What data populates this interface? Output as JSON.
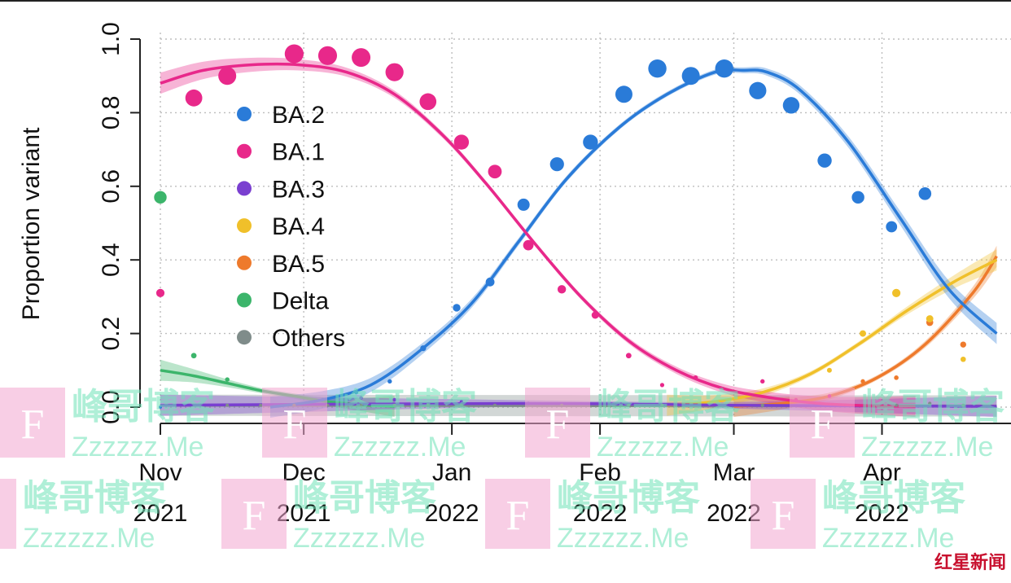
{
  "chart_data": {
    "type": "line",
    "ylabel": "Proportion variant",
    "ylim": [
      0,
      1
    ],
    "y_ticks": [
      "0.0",
      "0.2",
      "0.4",
      "0.6",
      "0.8",
      "1.0"
    ],
    "x_range": [
      "2021-11-01",
      "2022-04-25"
    ],
    "x_ticks": [
      {
        "date": "2021-11-01",
        "month": "Nov",
        "year": "2021"
      },
      {
        "date": "2021-12-01",
        "month": "Dec",
        "year": "2021"
      },
      {
        "date": "2022-01-01",
        "month": "Jan",
        "year": "2022"
      },
      {
        "date": "2022-02-01",
        "month": "Feb",
        "year": "2022"
      },
      {
        "date": "2022-03-01",
        "month": "Mar",
        "year": "2022"
      },
      {
        "date": "2022-04-01",
        "month": "Apr",
        "year": "2022"
      }
    ],
    "grid": true,
    "legend_position": "top-left",
    "series": [
      {
        "name": "BA.2",
        "color": "#2a7bd8",
        "fit": [
          [
            "2021-11-24",
            0.0
          ],
          [
            "2021-12-05",
            0.02
          ],
          [
            "2021-12-15",
            0.06
          ],
          [
            "2021-12-25",
            0.15
          ],
          [
            "2022-01-05",
            0.28
          ],
          [
            "2022-01-15",
            0.45
          ],
          [
            "2022-01-25",
            0.62
          ],
          [
            "2022-02-05",
            0.76
          ],
          [
            "2022-02-15",
            0.85
          ],
          [
            "2022-02-25",
            0.91
          ],
          [
            "2022-03-03",
            0.915
          ],
          [
            "2022-03-08",
            0.91
          ],
          [
            "2022-03-15",
            0.86
          ],
          [
            "2022-03-25",
            0.72
          ],
          [
            "2022-04-05",
            0.51
          ],
          [
            "2022-04-15",
            0.32
          ],
          [
            "2022-04-25",
            0.2
          ]
        ],
        "points": [
          [
            "2021-11-01",
            0.0
          ],
          [
            "2021-12-05",
            0.02
          ],
          [
            "2021-12-12",
            0.04
          ],
          [
            "2021-12-19",
            0.07
          ],
          [
            "2021-12-26",
            0.16
          ],
          [
            "2022-01-02",
            0.27
          ],
          [
            "2022-01-09",
            0.34
          ],
          [
            "2022-01-16",
            0.55
          ],
          [
            "2022-01-23",
            0.66
          ],
          [
            "2022-01-30",
            0.72
          ],
          [
            "2022-02-06",
            0.85
          ],
          [
            "2022-02-13",
            0.92
          ],
          [
            "2022-02-20",
            0.9
          ],
          [
            "2022-02-27",
            0.92
          ],
          [
            "2022-03-06",
            0.86
          ],
          [
            "2022-03-13",
            0.82
          ],
          [
            "2022-03-20",
            0.67
          ],
          [
            "2022-03-27",
            0.57
          ],
          [
            "2022-04-03",
            0.49
          ],
          [
            "2022-04-10",
            0.58
          ]
        ]
      },
      {
        "name": "BA.1",
        "color": "#e8288a",
        "fit": [
          [
            "2021-11-01",
            0.88
          ],
          [
            "2021-11-10",
            0.915
          ],
          [
            "2021-11-20",
            0.93
          ],
          [
            "2021-11-30",
            0.93
          ],
          [
            "2021-12-10",
            0.91
          ],
          [
            "2021-12-20",
            0.85
          ],
          [
            "2021-12-30",
            0.74
          ],
          [
            "2022-01-08",
            0.61
          ],
          [
            "2022-01-18",
            0.45
          ],
          [
            "2022-01-28",
            0.3
          ],
          [
            "2022-02-07",
            0.18
          ],
          [
            "2022-02-17",
            0.1
          ],
          [
            "2022-02-27",
            0.05
          ],
          [
            "2022-03-09",
            0.025
          ],
          [
            "2022-03-19",
            0.01
          ],
          [
            "2022-03-29",
            0.004
          ],
          [
            "2022-04-08",
            0.002
          ]
        ],
        "points": [
          [
            "2021-11-01",
            0.31
          ],
          [
            "2021-11-08",
            0.84
          ],
          [
            "2021-11-15",
            0.9
          ],
          [
            "2021-11-29",
            0.96
          ],
          [
            "2021-12-06",
            0.955
          ],
          [
            "2021-12-13",
            0.95
          ],
          [
            "2021-12-20",
            0.91
          ],
          [
            "2021-12-27",
            0.83
          ],
          [
            "2022-01-03",
            0.72
          ],
          [
            "2022-01-10",
            0.64
          ],
          [
            "2022-01-17",
            0.44
          ],
          [
            "2022-01-24",
            0.32
          ],
          [
            "2022-01-31",
            0.25
          ],
          [
            "2022-02-07",
            0.14
          ],
          [
            "2022-02-14",
            0.06
          ],
          [
            "2022-02-21",
            0.08
          ],
          [
            "2022-03-07",
            0.07
          ],
          [
            "2022-03-14",
            0.02
          ],
          [
            "2022-03-21",
            0.03
          ]
        ]
      },
      {
        "name": "BA.3",
        "color": "#7a3fd0",
        "fit": [
          [
            "2021-11-01",
            0.005
          ],
          [
            "2022-01-15",
            0.01
          ],
          [
            "2022-03-01",
            0.005
          ],
          [
            "2022-04-25",
            0.002
          ]
        ],
        "points": [
          [
            "2021-12-13",
            0.025
          ],
          [
            "2021-12-20",
            0.02
          ],
          [
            "2022-01-03",
            0.015
          ],
          [
            "2022-01-17",
            0.01
          ]
        ]
      },
      {
        "name": "BA.4",
        "color": "#f0c02a",
        "fit": [
          [
            "2022-02-15",
            0.005
          ],
          [
            "2022-02-25",
            0.015
          ],
          [
            "2022-03-07",
            0.04
          ],
          [
            "2022-03-17",
            0.09
          ],
          [
            "2022-03-27",
            0.17
          ],
          [
            "2022-04-06",
            0.26
          ],
          [
            "2022-04-16",
            0.34
          ],
          [
            "2022-04-25",
            0.4
          ]
        ],
        "points": [
          [
            "2022-03-21",
            0.1
          ],
          [
            "2022-03-28",
            0.2
          ],
          [
            "2022-04-04",
            0.31
          ],
          [
            "2022-04-11",
            0.24
          ],
          [
            "2022-04-18",
            0.13
          ]
        ]
      },
      {
        "name": "BA.5",
        "color": "#ee7a2c",
        "fit": [
          [
            "2022-03-01",
            0.002
          ],
          [
            "2022-03-11",
            0.01
          ],
          [
            "2022-03-21",
            0.03
          ],
          [
            "2022-03-31",
            0.08
          ],
          [
            "2022-04-10",
            0.17
          ],
          [
            "2022-04-20",
            0.31
          ],
          [
            "2022-04-25",
            0.41
          ]
        ],
        "points": [
          [
            "2022-03-28",
            0.07
          ],
          [
            "2022-04-04",
            0.08
          ],
          [
            "2022-04-11",
            0.23
          ],
          [
            "2022-04-18",
            0.17
          ]
        ]
      },
      {
        "name": "Delta",
        "color": "#3cb56b",
        "fit": [
          [
            "2021-11-01",
            0.1
          ],
          [
            "2021-11-08",
            0.085
          ],
          [
            "2021-11-15",
            0.065
          ],
          [
            "2021-11-22",
            0.045
          ],
          [
            "2021-11-29",
            0.03
          ],
          [
            "2021-12-06",
            0.015
          ],
          [
            "2021-12-13",
            0.007
          ],
          [
            "2021-12-20",
            0.002
          ]
        ],
        "points": [
          [
            "2021-11-01",
            0.57
          ],
          [
            "2021-11-08",
            0.14
          ],
          [
            "2021-11-15",
            0.075
          ]
        ]
      },
      {
        "name": "Others",
        "color": "#7f8c8a",
        "fit": [
          [
            "2021-11-01",
            0.005
          ],
          [
            "2022-04-25",
            0.003
          ]
        ],
        "points": [
          [
            "2021-11-15",
            0.005
          ],
          [
            "2021-11-22",
            0.005
          ],
          [
            "2021-11-29",
            0.005
          ],
          [
            "2021-12-06",
            0.005
          ],
          [
            "2021-12-13",
            0.005
          ],
          [
            "2021-12-20",
            0.005
          ],
          [
            "2021-12-27",
            0.005
          ],
          [
            "2022-01-03",
            0.005
          ],
          [
            "2022-01-10",
            0.005
          ],
          [
            "2022-01-24",
            0.005
          ],
          [
            "2022-02-07",
            0.005
          ],
          [
            "2022-02-14",
            0.005
          ],
          [
            "2022-03-07",
            0.005
          ],
          [
            "2022-04-04",
            0.005
          ],
          [
            "2022-04-11",
            0.01
          ],
          [
            "2022-04-18",
            0.005
          ]
        ]
      }
    ]
  },
  "watermark": {
    "brand_text": "峰哥博客",
    "url_text": "Zzzzzz.Me",
    "letter": "F"
  },
  "logo": {
    "text": "红星新闻"
  }
}
